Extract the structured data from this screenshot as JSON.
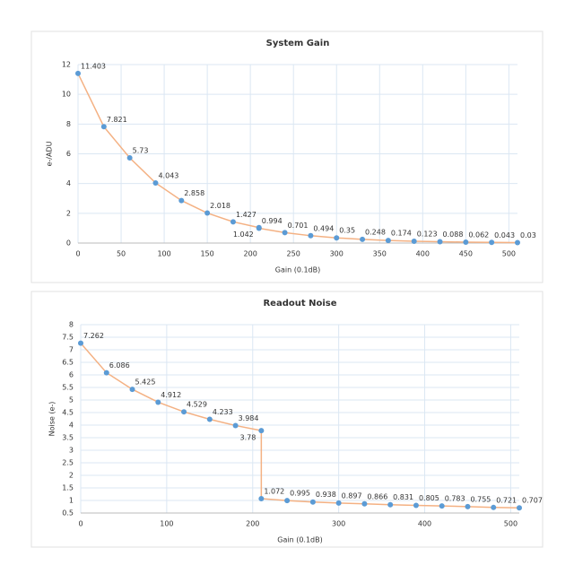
{
  "chart_data": [
    {
      "type": "line",
      "title": "System Gain",
      "x_label": "Gain (0.1dB)",
      "y_label": "e-/ADU",
      "x": [
        0,
        30,
        60,
        90,
        120,
        150,
        180,
        210,
        210,
        240,
        270,
        300,
        330,
        360,
        390,
        420,
        450,
        480,
        510
      ],
      "values": [
        11.403,
        7.821,
        5.73,
        4.043,
        2.858,
        2.018,
        1.427,
        1.042,
        0.994,
        0.701,
        0.494,
        0.35,
        0.248,
        0.174,
        0.123,
        0.088,
        0.062,
        0.043,
        0.03
      ],
      "color": "#f4b183",
      "marker_color": "#5b9bd5",
      "xlim": [
        0,
        510
      ],
      "xticks": [
        0,
        50,
        100,
        150,
        200,
        250,
        300,
        350,
        400,
        450,
        500
      ],
      "ylim": [
        0,
        12
      ],
      "yticks": [
        0,
        2,
        4,
        6,
        8,
        10,
        12
      ],
      "grid": true
    },
    {
      "type": "line",
      "title": "Readout Noise",
      "x_label": "Gain (0.1dB)",
      "y_label": "Noise (e-)",
      "x": [
        0,
        30,
        60,
        90,
        120,
        150,
        180,
        210,
        210,
        240,
        270,
        300,
        330,
        360,
        390,
        420,
        450,
        480,
        510
      ],
      "values": [
        7.262,
        6.086,
        5.425,
        4.912,
        4.529,
        4.233,
        3.984,
        3.78,
        1.072,
        0.995,
        0.938,
        0.897,
        0.866,
        0.831,
        0.805,
        0.783,
        0.755,
        0.721,
        0.707
      ],
      "color": "#f4b183",
      "marker_color": "#5b9bd5",
      "xlim": [
        0,
        510
      ],
      "xticks": [
        0,
        100,
        200,
        300,
        400,
        500
      ],
      "ylim": [
        0.5,
        8
      ],
      "yticks": [
        0.5,
        1,
        1.5,
        2,
        2.5,
        3,
        3.5,
        4,
        4.5,
        5,
        5.5,
        6,
        6.5,
        7,
        7.5,
        8
      ],
      "grid": true
    }
  ]
}
